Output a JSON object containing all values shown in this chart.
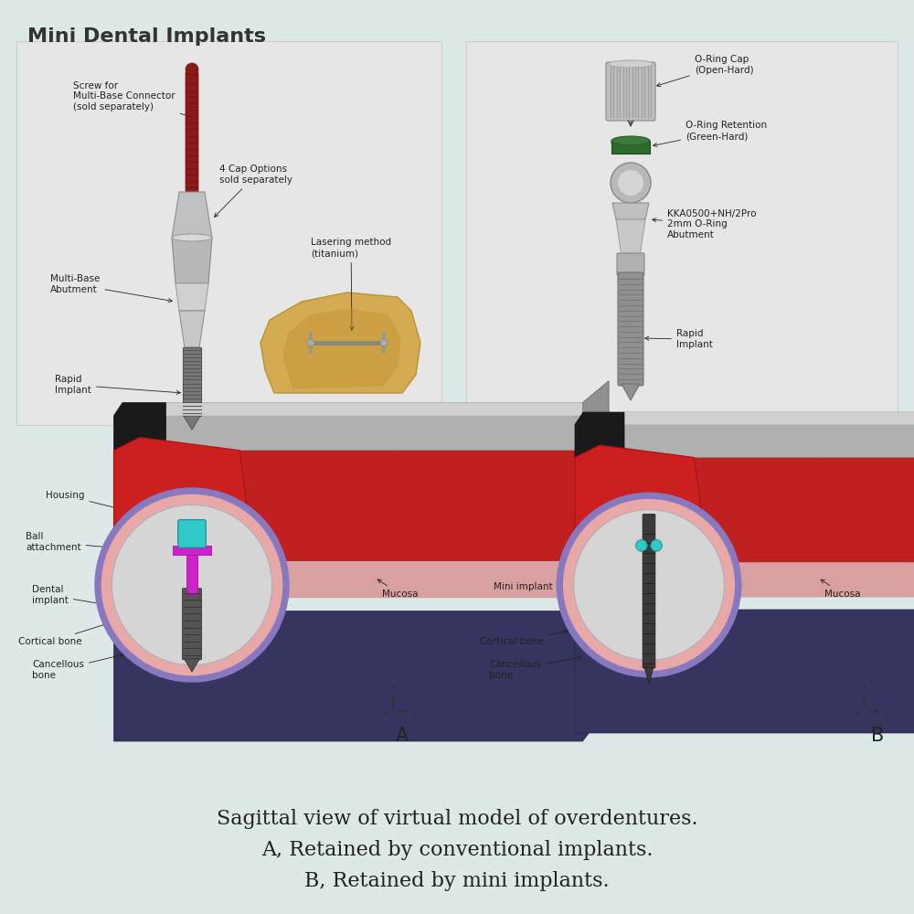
{
  "background_color": "#dde8e8",
  "title": "Mini Dental Implants",
  "title_fontsize": 16,
  "title_color": "#333333",
  "caption_lines": [
    "Sagittal view of virtual model of overdentures.",
    "A, Retained by conventional implants.",
    "B, Retained by mini implants."
  ],
  "caption_fontsize": 16,
  "caption_color": "#222222",
  "panel_bg": "#e8e8e8",
  "panel_border": "#bbbbbb",
  "annotation_fontsize": 7.5,
  "annotation_color": "#222222"
}
